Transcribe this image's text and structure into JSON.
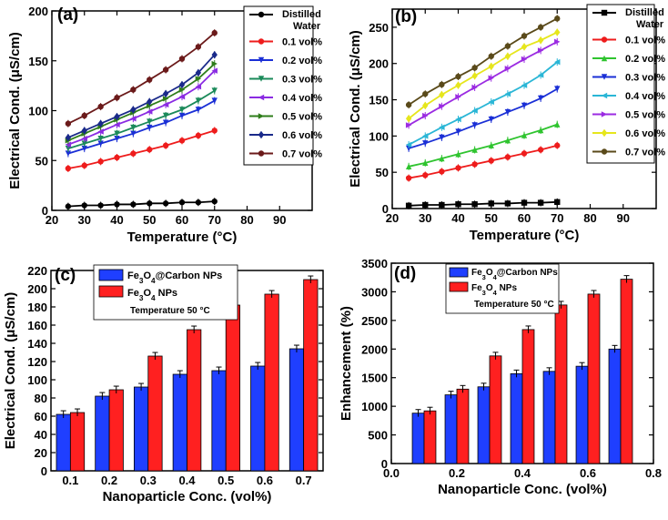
{
  "chart_data": [
    {
      "panel": "(a)",
      "type": "line",
      "xlabel": "Temperature (°C)",
      "ylabel": "Electrical Cond. (μS/cm)",
      "xlim": [
        20,
        100
      ],
      "ylim": [
        0,
        200
      ],
      "xticks": [
        20,
        30,
        40,
        50,
        60,
        70,
        80,
        90
      ],
      "yticks": [
        0,
        50,
        100,
        150,
        200
      ],
      "x": [
        25,
        30,
        35,
        40,
        45,
        50,
        55,
        60,
        65,
        70
      ],
      "series": [
        {
          "name": "Distilled Water",
          "color": "#000000",
          "marker": "circle",
          "values": [
            4,
            5,
            5,
            6,
            6,
            7,
            7,
            8,
            8,
            9
          ]
        },
        {
          "name": "0.1 vol%",
          "color": "#ee1c1c",
          "marker": "circle",
          "values": [
            42,
            45,
            49,
            53,
            57,
            61,
            65,
            70,
            75,
            80
          ]
        },
        {
          "name": "0.2 vol%",
          "color": "#1a2fd6",
          "marker": "triangle-down",
          "values": [
            57,
            62,
            67,
            72,
            77,
            83,
            88,
            95,
            101,
            110
          ]
        },
        {
          "name": "0.3 vol%",
          "color": "#1b8a5a",
          "marker": "triangle-down",
          "values": [
            62,
            67,
            72,
            77,
            83,
            89,
            95,
            101,
            110,
            120
          ]
        },
        {
          "name": "0.4 vol%",
          "color": "#8a2be2",
          "marker": "triangle-left",
          "values": [
            66,
            72,
            79,
            86,
            92,
            99,
            106,
            114,
            124,
            140
          ]
        },
        {
          "name": "0.5 vol%",
          "color": "#2e7d1a",
          "marker": "triangle-right",
          "values": [
            70,
            77,
            84,
            91,
            98,
            105,
            112,
            121,
            132,
            147
          ]
        },
        {
          "name": "0.6 vol%",
          "color": "#1a2a8a",
          "marker": "diamond",
          "values": [
            73,
            80,
            87,
            94,
            101,
            109,
            117,
            126,
            138,
            156
          ]
        },
        {
          "name": "0.7 vol%",
          "color": "#6b1a1a",
          "marker": "circle",
          "values": [
            87,
            95,
            104,
            113,
            121,
            131,
            141,
            152,
            164,
            178
          ]
        }
      ]
    },
    {
      "panel": "(b)",
      "type": "line",
      "xlabel": "Temperature (°C)",
      "ylabel": "Electrical Cond. (μS/cm)",
      "xlim": [
        20,
        100
      ],
      "ylim": [
        0,
        275
      ],
      "xticks": [
        20,
        30,
        40,
        50,
        60,
        70,
        80,
        90
      ],
      "yticks": [
        0,
        50,
        100,
        150,
        200,
        250
      ],
      "x": [
        25,
        30,
        35,
        40,
        45,
        50,
        55,
        60,
        65,
        70
      ],
      "series": [
        {
          "name": "Distilled Water",
          "color": "#000000",
          "marker": "square",
          "values": [
            4,
            5,
            5,
            6,
            6,
            7,
            7,
            8,
            8,
            9
          ]
        },
        {
          "name": "0.1 vol%",
          "color": "#ee1c1c",
          "marker": "circle",
          "values": [
            42,
            46,
            51,
            56,
            61,
            66,
            71,
            76,
            81,
            87
          ]
        },
        {
          "name": "0.2 vol%",
          "color": "#2fc42f",
          "marker": "triangle-up",
          "values": [
            58,
            63,
            69,
            75,
            81,
            87,
            94,
            101,
            108,
            116
          ]
        },
        {
          "name": "0.3 vol%",
          "color": "#1a2fd6",
          "marker": "triangle-down",
          "values": [
            83,
            90,
            98,
            106,
            115,
            123,
            133,
            142,
            152,
            165
          ]
        },
        {
          "name": "0.4 vol%",
          "color": "#2ab6d6",
          "marker": "triangle-left",
          "values": [
            88,
            100,
            112,
            123,
            135,
            147,
            158,
            170,
            184,
            202
          ]
        },
        {
          "name": "0.5 vol%",
          "color": "#9b2be2",
          "marker": "triangle-right",
          "values": [
            115,
            128,
            141,
            154,
            167,
            180,
            193,
            206,
            218,
            230
          ]
        },
        {
          "name": "0.6 vol%",
          "color": "#e6e61c",
          "marker": "diamond",
          "values": [
            124,
            142,
            157,
            170,
            183,
            196,
            210,
            223,
            232,
            243
          ]
        },
        {
          "name": "0.7 vol%",
          "color": "#5a4a1a",
          "marker": "circle",
          "values": [
            143,
            158,
            171,
            182,
            194,
            210,
            224,
            238,
            250,
            262
          ]
        }
      ]
    },
    {
      "panel": "(c)",
      "type": "bar",
      "xlabel": "Nanoparticle Conc. (vol%)",
      "ylabel": "Electrical Cond. (μS/cm)",
      "ylim": [
        0,
        220
      ],
      "yticks": [
        0,
        20,
        40,
        60,
        80,
        100,
        120,
        140,
        160,
        180,
        200,
        220
      ],
      "categories": [
        "0.1",
        "0.2",
        "0.3",
        "0.4",
        "0.5",
        "0.6",
        "0.7"
      ],
      "annotation": "Temperature 50 °C",
      "series": [
        {
          "name": "Fe3O4@Carbon NPs",
          "color": "#1f3fff",
          "values": [
            62,
            82,
            92,
            106,
            110,
            115,
            134
          ]
        },
        {
          "name": "Fe3O4 NPs",
          "color": "#ff2020",
          "values": [
            64,
            89,
            126,
            155,
            182,
            194,
            210
          ]
        }
      ]
    },
    {
      "panel": "(d)",
      "type": "bar",
      "xlabel": "Nanoparticle Conc. (vol%)",
      "ylabel": "Enhancement (%)",
      "xlim": [
        0,
        0.8
      ],
      "ylim": [
        0,
        3500
      ],
      "xticks": [
        0.0,
        0.2,
        0.4,
        0.6,
        0.8
      ],
      "yticks": [
        0,
        500,
        1000,
        1500,
        2000,
        2500,
        3000,
        3500
      ],
      "x": [
        0.1,
        0.2,
        0.3,
        0.4,
        0.5,
        0.6,
        0.7
      ],
      "annotation": "Temperature 50 °C",
      "series": [
        {
          "name": "Fe3O4@Carbon NPs",
          "color": "#1f3fff",
          "values": [
            880,
            1200,
            1340,
            1570,
            1610,
            1700,
            2000
          ]
        },
        {
          "name": "Fe3O4 NPs",
          "color": "#ff2020",
          "values": [
            920,
            1300,
            1880,
            2340,
            2770,
            2960,
            3220
          ]
        }
      ]
    }
  ],
  "labels": {
    "panel_a": "(a)",
    "panel_b": "(b)",
    "panel_c": "(c)",
    "panel_d": "(d)",
    "temperature_label": "Temperature (°C)",
    "conductivity_label": "Electrical Cond. (μS/cm)",
    "conc_label": "Nanoparticle Conc. (vol%)",
    "enhancement_label": "Enhancement (%)",
    "carbon_legend": "Fe3O4@Carbon NPs",
    "fe3o4_legend": "Fe3O4 NPs",
    "temp50": "Temperature 50 °C"
  }
}
